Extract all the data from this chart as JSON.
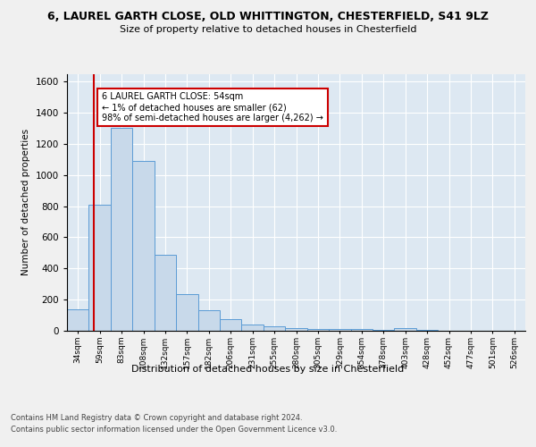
{
  "title1": "6, LAUREL GARTH CLOSE, OLD WHITTINGTON, CHESTERFIELD, S41 9LZ",
  "title2": "Size of property relative to detached houses in Chesterfield",
  "xlabel": "Distribution of detached houses by size in Chesterfield",
  "ylabel": "Number of detached properties",
  "footer1": "Contains HM Land Registry data © Crown copyright and database right 2024.",
  "footer2": "Contains public sector information licensed under the Open Government Licence v3.0.",
  "bar_labels": [
    "34sqm",
    "59sqm",
    "83sqm",
    "108sqm",
    "132sqm",
    "157sqm",
    "182sqm",
    "206sqm",
    "231sqm",
    "255sqm",
    "280sqm",
    "305sqm",
    "329sqm",
    "354sqm",
    "378sqm",
    "403sqm",
    "428sqm",
    "452sqm",
    "477sqm",
    "501sqm",
    "526sqm"
  ],
  "bar_values": [
    140,
    810,
    1300,
    1090,
    490,
    235,
    133,
    73,
    43,
    27,
    15,
    12,
    10,
    9,
    8,
    20,
    6,
    0,
    0,
    0,
    0
  ],
  "bar_color": "#c8d9ea",
  "bar_edge_color": "#5b9bd5",
  "red_line_x": 0.72,
  "red_line_color": "#cc0000",
  "annotation_text": "6 LAUREL GARTH CLOSE: 54sqm\n← 1% of detached houses are smaller (62)\n98% of semi-detached houses are larger (4,262) →",
  "annotation_box_color": "#ffffff",
  "annotation_box_edge": "#cc0000",
  "ylim": [
    0,
    1650
  ],
  "yticks": [
    0,
    200,
    400,
    600,
    800,
    1000,
    1200,
    1400,
    1600
  ],
  "fig_bg": "#f0f0f0",
  "plot_bg": "#dde8f2"
}
